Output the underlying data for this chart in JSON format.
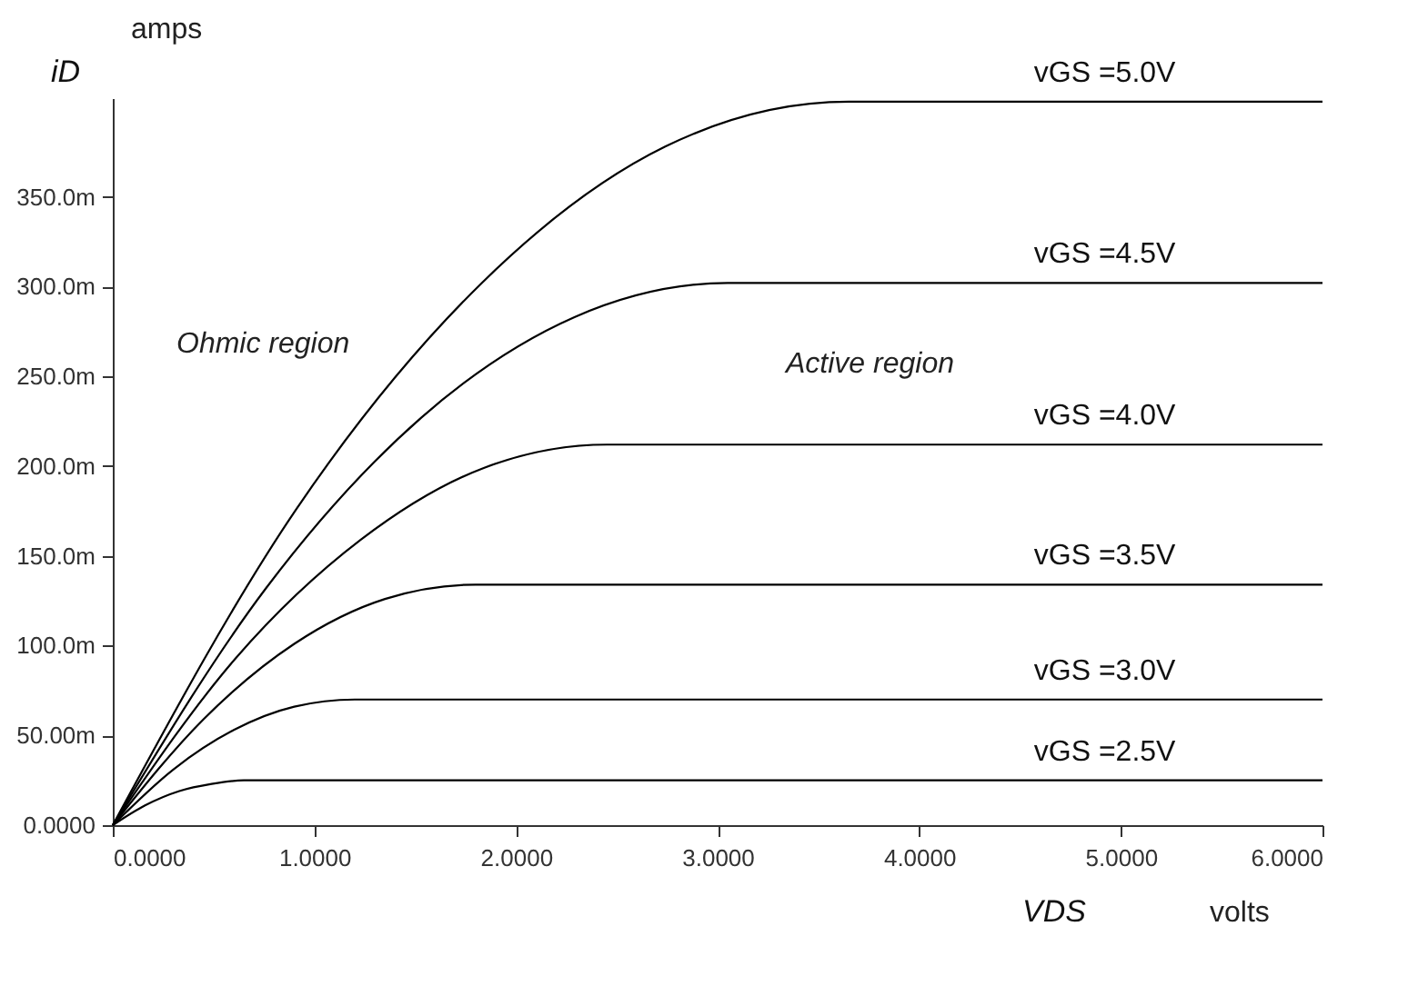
{
  "chart_data": {
    "type": "line",
    "xlabel": "VDS",
    "ylabel": "iD",
    "annotations": [
      "amps",
      "volts",
      "Ohmic region",
      "Active region"
    ],
    "xlim": [
      0,
      6
    ],
    "ylim": [
      0,
      405
    ],
    "xticks": [
      {
        "value": 0,
        "label": "0.0000"
      },
      {
        "value": 1,
        "label": "1.0000"
      },
      {
        "value": 2,
        "label": "2.0000"
      },
      {
        "value": 3,
        "label": "3.0000"
      },
      {
        "value": 4,
        "label": "4.0000"
      },
      {
        "value": 5,
        "label": "5.0000"
      },
      {
        "value": 6,
        "label": "6.0000"
      }
    ],
    "yticks": [
      {
        "value": 0,
        "label": "0.0000"
      },
      {
        "value": 50,
        "label": "50.00m"
      },
      {
        "value": 100,
        "label": "100.0m"
      },
      {
        "value": 150,
        "label": "150.0m"
      },
      {
        "value": 200,
        "label": "200.0m"
      },
      {
        "value": 250,
        "label": "250.0m"
      },
      {
        "value": 300,
        "label": "300.0m"
      },
      {
        "value": 350,
        "label": "350.0m"
      }
    ],
    "grid": false,
    "marker": "none",
    "line_style": "solid",
    "series": [
      {
        "name": "vGS =2.5V",
        "color": "#000000",
        "x": [
          0,
          0.16,
          0.33,
          0.49,
          0.65,
          6
        ],
        "values": [
          0,
          11,
          19,
          23,
          25,
          25
        ]
      },
      {
        "name": "vGS =3.0V",
        "color": "#000000",
        "x": [
          0,
          0.3,
          0.6,
          0.9,
          1.2,
          6
        ],
        "values": [
          0,
          31,
          53,
          66,
          70,
          70
        ]
      },
      {
        "name": "vGS =3.5V",
        "color": "#000000",
        "x": [
          0,
          0.45,
          0.9,
          1.35,
          1.8,
          6
        ],
        "values": [
          0,
          59,
          101,
          126,
          134,
          134
        ]
      },
      {
        "name": "vGS =4.0V",
        "color": "#000000",
        "x": [
          0,
          0.61,
          1.23,
          1.84,
          2.45,
          6
        ],
        "values": [
          0,
          93,
          159,
          199,
          212,
          212
        ]
      },
      {
        "name": "vGS =4.5V",
        "color": "#000000",
        "x": [
          0,
          0.76,
          1.53,
          2.29,
          3.05,
          6
        ],
        "values": [
          0,
          132,
          227,
          283,
          302,
          302
        ]
      },
      {
        "name": "vGS =5.0V",
        "color": "#000000",
        "x": [
          0,
          0.91,
          1.83,
          2.74,
          3.65,
          6
        ],
        "values": [
          0,
          176,
          302,
          378,
          403,
          403
        ]
      }
    ]
  }
}
